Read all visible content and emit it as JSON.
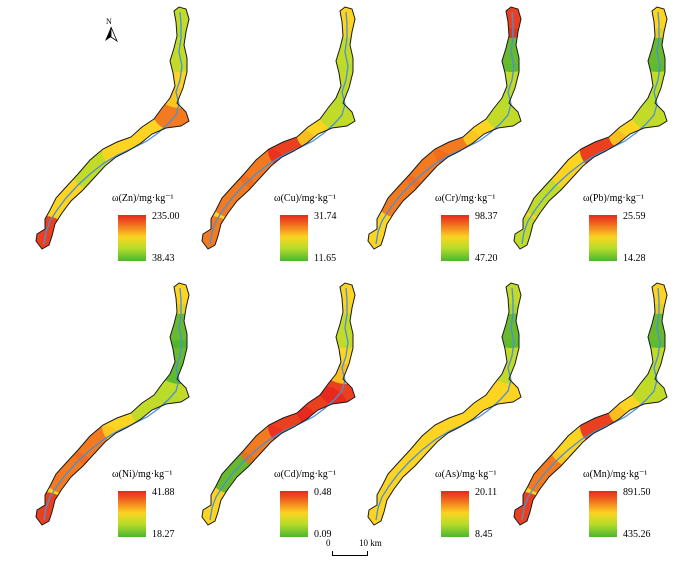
{
  "north_label": "N",
  "scale": {
    "zero": "0",
    "distance": "10 km"
  },
  "panels": [
    {
      "element": "Zn",
      "title": "ω(Zn)/mg·kg⁻¹",
      "max": "235.00",
      "min": "38.43"
    },
    {
      "element": "Cu",
      "title": "ω(Cu)/mg·kg⁻¹",
      "max": "31.74",
      "min": "11.65"
    },
    {
      "element": "Cr",
      "title": "ω(Cr)/mg·kg⁻¹",
      "max": "98.37",
      "min": "47.20"
    },
    {
      "element": "Pb",
      "title": "ω(Pb)/mg·kg⁻¹",
      "max": "25.59",
      "min": "14.28"
    },
    {
      "element": "Ni",
      "title": "ω(Ni)/mg·kg⁻¹",
      "max": "41.88",
      "min": "18.27"
    },
    {
      "element": "Cd",
      "title": "ω(Cd)/mg·kg⁻¹",
      "max": "0.48",
      "min": "0.09"
    },
    {
      "element": "As",
      "title": "ω(As)/mg·kg⁻¹",
      "max": "20.11",
      "min": "8.45"
    },
    {
      "element": "Mn",
      "title": "ω(Mn)/mg·kg⁻¹",
      "max": "891.50",
      "min": "435.26"
    }
  ],
  "colors": {
    "high": "#e8261e",
    "mid_high": "#f26a1f",
    "mid": "#fbd421",
    "mid_low": "#b7dc2a",
    "low": "#4cb52f",
    "river": "#4a90d9",
    "outline": "#1a1a1a"
  }
}
